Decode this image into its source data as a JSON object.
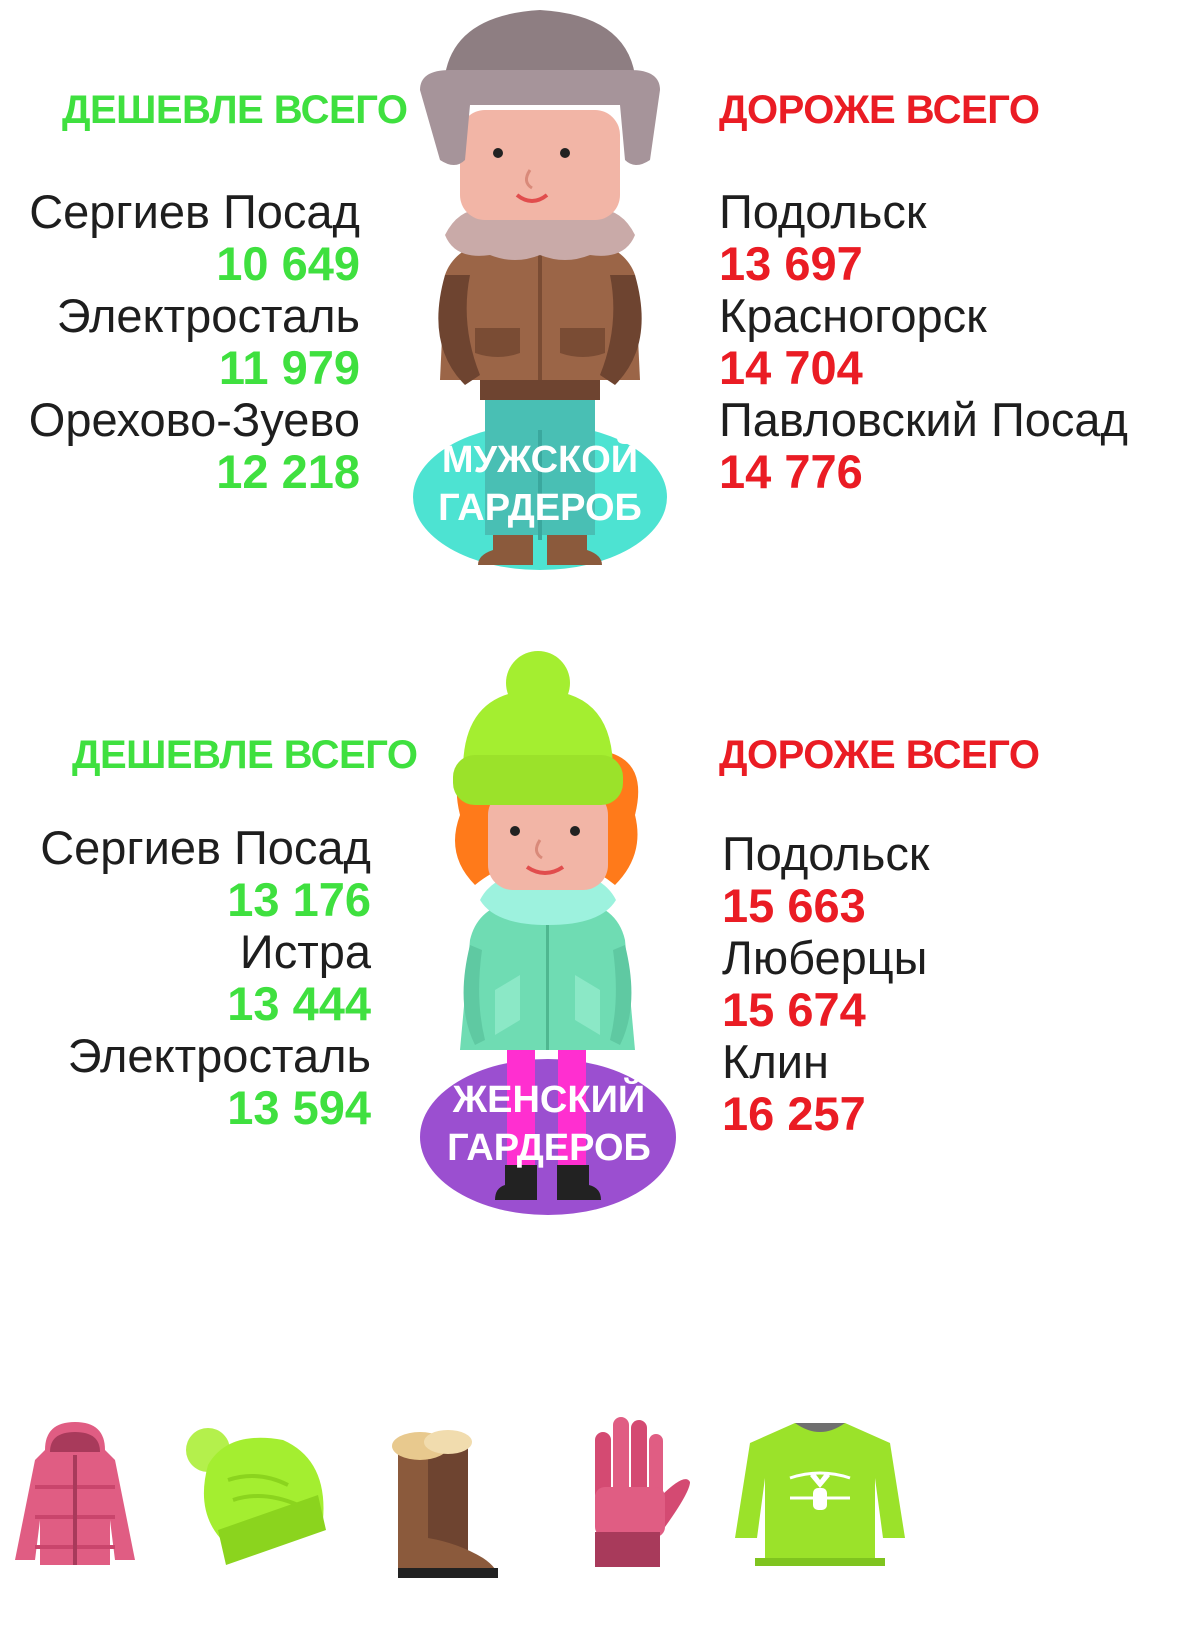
{
  "men": {
    "cheap_heading": "ДЕШЕВЛЕ ВСЕГО",
    "expensive_heading": "ДОРОЖЕ ВСЕГО",
    "badge_line1": "МУЖСКОЙ",
    "badge_line2": "ГАРДЕРОБ",
    "cheapest": [
      {
        "city": "Сергиев Посад",
        "price": "10 649"
      },
      {
        "city": "Электросталь",
        "price": "11 979"
      },
      {
        "city": "Орехово-Зуево",
        "price": "12 218"
      }
    ],
    "priciest": [
      {
        "city": "Подольск",
        "price": "13 697"
      },
      {
        "city": "Красногорск",
        "price": "14 704"
      },
      {
        "city": "Павловский Посад",
        "price": "14 776"
      }
    ]
  },
  "women": {
    "cheap_heading": "ДЕШЕВЛЕ ВСЕГО",
    "expensive_heading": "ДОРОЖЕ ВСЕГО",
    "badge_line1": "ЖЕНСКИЙ",
    "badge_line2": "ГАРДЕРОБ",
    "cheapest": [
      {
        "city": "Сергиев Посад",
        "price": "13 176"
      },
      {
        "city": "Истра",
        "price": "13 444"
      },
      {
        "city": "Электросталь",
        "price": "13 594"
      }
    ],
    "priciest": [
      {
        "city": "Подольск",
        "price": "15 663"
      },
      {
        "city": "Люберцы",
        "price": "15 674"
      },
      {
        "city": "Клин",
        "price": "16 257"
      }
    ]
  },
  "colors": {
    "cheap": "#3fe03f",
    "expensive": "#ea1c24",
    "men_badge": "#4de3d2",
    "women_badge": "#9b4fd0"
  },
  "icons": [
    "puffer-jacket-icon",
    "knit-hat-icon",
    "winter-boot-icon",
    "glove-icon",
    "sweater-icon"
  ]
}
